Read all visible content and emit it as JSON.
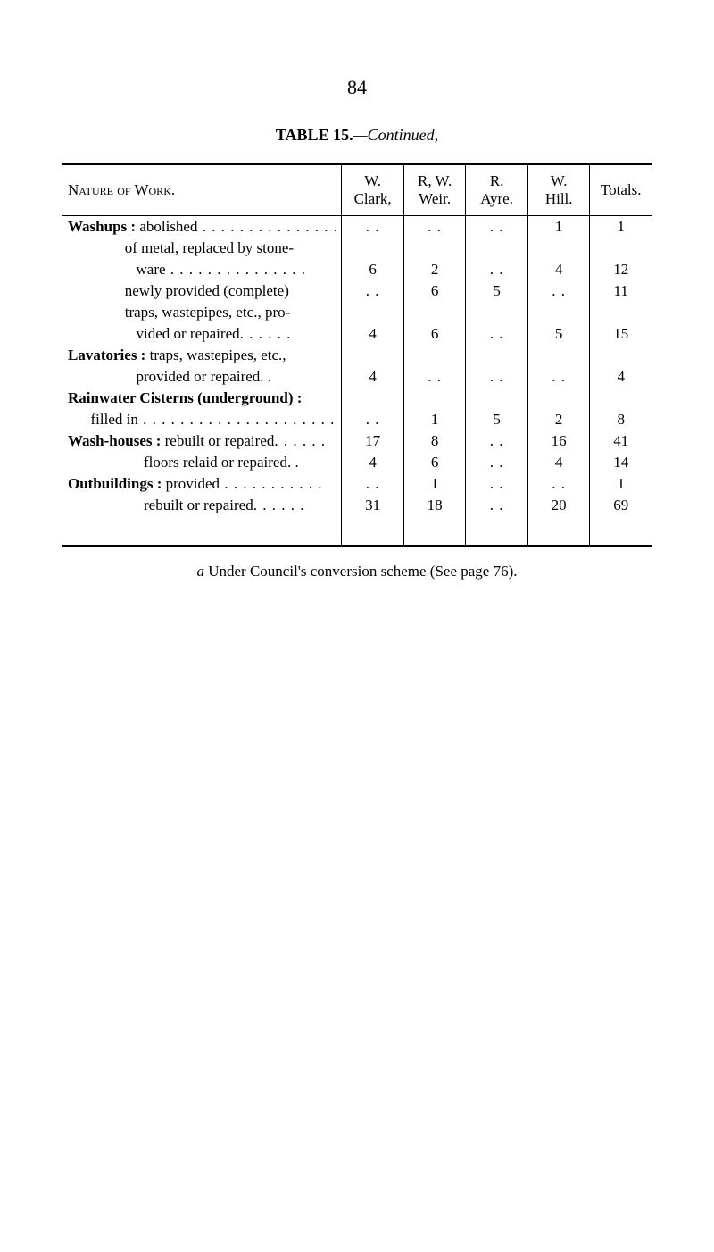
{
  "page_number": "84",
  "table_title_bold": "TABLE 15.",
  "table_title_italic": "—Continued,",
  "headers": {
    "nature": "Nature of Work.",
    "col1_line1": "W.",
    "col1_line2": "Clark,",
    "col2_line1": "R, W.",
    "col2_line2": "Weir.",
    "col3_line1": "R.",
    "col3_line2": "Ayre.",
    "col4_line1": "W.",
    "col4_line2": "Hill.",
    "col5": "Totals."
  },
  "rows": [
    {
      "label_bold": "Washups : ",
      "label_rest": "abolished",
      "trailing_dots": true,
      "c1": "",
      "c2": "",
      "c3": "",
      "c4": "1",
      "c5": "1",
      "c1_dd": true,
      "c2_dd": true,
      "c3_dd": true
    },
    {
      "indent": true,
      "label_rest": "of metal, replaced by stone-",
      "c1": "",
      "c2": "",
      "c3": "",
      "c4": "",
      "c5": ""
    },
    {
      "indent": true,
      "indent2": true,
      "label_rest": "ware",
      "trailing_dots": true,
      "c1": "6",
      "c2": "2",
      "c3": "",
      "c4": "4",
      "c5": "12",
      "c3_dd": true
    },
    {
      "indent": true,
      "label_rest": "newly provided (complete)",
      "c1": "",
      "c2": "6",
      "c3": "5",
      "c4": "",
      "c5": "11",
      "c1_dd": true,
      "c4_dd": true
    },
    {
      "indent": true,
      "label_rest": "traps, wastepipes, etc., pro-",
      "c1": "",
      "c2": "",
      "c3": "",
      "c4": "",
      "c5": ""
    },
    {
      "indent": true,
      "indent2": true,
      "label_rest": "vided or repaired",
      "trailing_dots_short": true,
      "c1": "4",
      "c2": "6",
      "c3": "",
      "c4": "5",
      "c5": "15",
      "c3_dd": true
    },
    {
      "label_bold": "Lavatories : ",
      "label_rest": "traps, wastepipes, etc.,",
      "c1": "",
      "c2": "",
      "c3": "",
      "c4": "",
      "c5": ""
    },
    {
      "indent": true,
      "indent2": true,
      "label_rest": "provided or repaired. .",
      "c1": "4",
      "c2": "",
      "c3": "",
      "c4": "",
      "c5": "4",
      "c2_dd": true,
      "c3_dd": true,
      "c4_dd": true
    },
    {
      "label_bold": "Rainwater Cisterns (underground) :",
      "label_rest": "",
      "c1": "",
      "c2": "",
      "c3": "",
      "c4": "",
      "c5": ""
    },
    {
      "indent_small": true,
      "label_rest": "filled in",
      "trailing_dots_long": true,
      "c1": "",
      "c2": "1",
      "c3": "5",
      "c4": "2",
      "c5": "8",
      "c1_dd": true
    },
    {
      "label_bold": "Wash-houses : ",
      "label_rest": "rebuilt or repaired",
      "trailing_dots_short": true,
      "c1": "17",
      "c2": "8",
      "c3": "",
      "c4": "16",
      "c5": "41",
      "c3_dd": true
    },
    {
      "indent": true,
      "indent2b": true,
      "label_rest": "floors relaid or repaired. .",
      "c1": "4",
      "c2": "6",
      "c3": "",
      "c4": "4",
      "c5": "14",
      "c3_dd": true
    },
    {
      "label_bold": "Outbuildings : ",
      "label_rest": "provided",
      "trailing_dots_med": true,
      "c1": "",
      "c2": "1",
      "c3": "",
      "c4": "",
      "c5": "1",
      "c1_dd": true,
      "c3_dd": true,
      "c4_dd": true
    },
    {
      "indent": true,
      "indent2b": true,
      "label_rest": "rebuilt or repaired",
      "trailing_dots_short": true,
      "c1": "31",
      "c2": "18",
      "c3": "",
      "c4": "20",
      "c5": "69",
      "c3_dd": true
    }
  ],
  "footnote_a": "a",
  "footnote_text": " Under Council's conversion scheme (See page 76)."
}
